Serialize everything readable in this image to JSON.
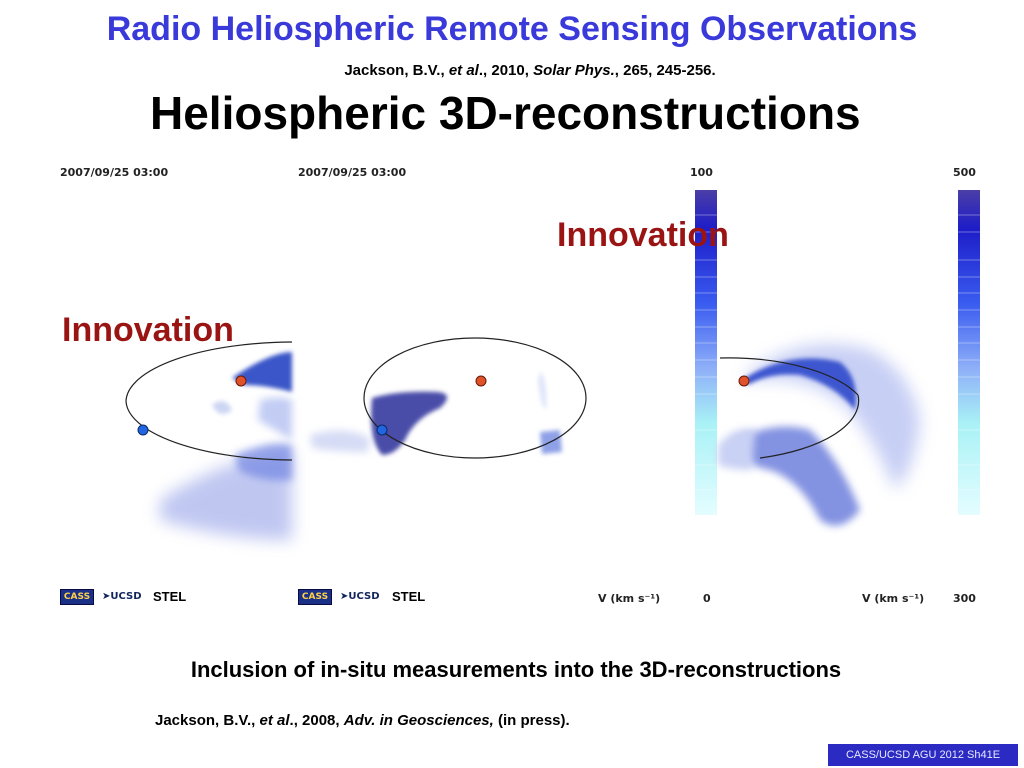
{
  "title": "Radio Heliospheric Remote Sensing Observations",
  "citation_top": {
    "author": "Jackson, B.V., ",
    "etal": "et al",
    "mid": "., 2010, ",
    "journal": "Solar Phys.",
    "rest": ", 265, 245-256."
  },
  "section_title": "Heliospheric 3D-reconstructions",
  "panel_left": {
    "timestamp": "2007/09/25 03:00",
    "colorbar_top": "100",
    "colorbar_bottom": "0",
    "units": "V (km s⁻¹)",
    "logo_text": "CASS",
    "ucsd_text": "UCSD",
    "stel_text": "STEL"
  },
  "panel_right": {
    "timestamp": "2007/09/25 03:00",
    "colorbar_top": "500",
    "colorbar_bottom": "300",
    "units": "V (km s⁻¹)",
    "logo_text": "CASS",
    "ucsd_text": "UCSD",
    "stel_text": "STEL"
  },
  "innovation_labels": [
    "Innovation",
    "Innovation"
  ],
  "bottom_caption": "Inclusion of in-situ measurements into the 3D-reconstructions",
  "citation_bottom": {
    "author": "Jackson, B.V., ",
    "etal": "et al",
    "mid": "., 2008, ",
    "journal": "Adv. in Geosciences,",
    "rest": " (in press)."
  },
  "footer": "CASS/UCSD AGU 2012 Sh41E",
  "colors": {
    "title_blue": "#3a3adb",
    "innovation_red": "#9a1414",
    "footer_blue": "#2b2bc4",
    "earth_red": "#e0522a",
    "spacecraft_blue": "#2166e0"
  }
}
